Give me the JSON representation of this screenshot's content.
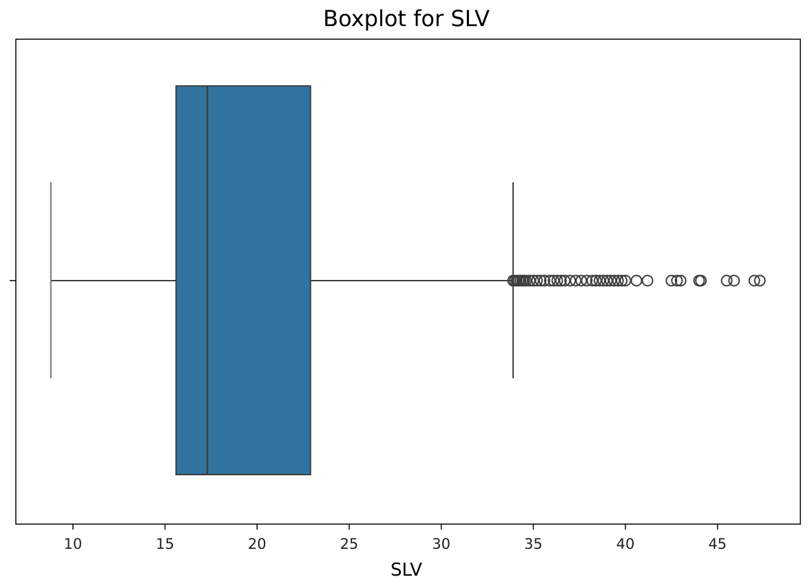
{
  "chart_data": {
    "type": "box",
    "title": "Boxplot for SLV",
    "xlabel": "SLV",
    "ylabel": "",
    "xlim": [
      6.9,
      49.5
    ],
    "xticks": [
      10,
      15,
      20,
      25,
      30,
      35,
      40,
      45
    ],
    "tick_labels": [
      "10",
      "15",
      "20",
      "25",
      "30",
      "35",
      "40",
      "45"
    ],
    "grid": false,
    "box": {
      "whisker_low": 8.8,
      "q1": 15.6,
      "median": 17.3,
      "q3": 22.9,
      "whisker_high": 33.9
    },
    "outliers": [
      33.9,
      34.0,
      34.1,
      34.2,
      34.3,
      34.4,
      34.5,
      34.6,
      34.8,
      35.0,
      35.2,
      35.4,
      35.6,
      35.9,
      36.1,
      36.3,
      36.5,
      36.7,
      37.0,
      37.3,
      37.6,
      37.9,
      38.2,
      38.4,
      38.6,
      38.8,
      39.0,
      39.2,
      39.4,
      39.6,
      39.8,
      40.0,
      40.6,
      41.2,
      42.5,
      42.8,
      43.0,
      44.0,
      44.1,
      45.5,
      45.9,
      47.0,
      47.3
    ],
    "colors": {
      "box_fill": "#3274a1",
      "lines": "#3d3d3d",
      "outlier_edge": "#3d3d3d"
    }
  }
}
